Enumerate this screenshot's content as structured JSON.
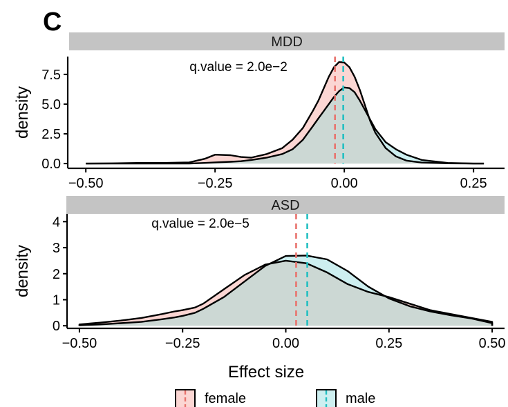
{
  "panel_label": "C",
  "legend": {
    "entries": [
      {
        "label": "female",
        "fill": "#fbd6d3",
        "line": "#e8736d"
      },
      {
        "label": "male",
        "fill": "#cdeff0",
        "line": "#22bfc1"
      }
    ]
  },
  "overlap_fill": "#ccd8d4",
  "chart_data": [
    {
      "type": "area",
      "facet": "MDD",
      "annotation": "q.value = 2.0e−2",
      "xlabel": "",
      "ylabel": "density",
      "xlim": [
        -0.535,
        0.31
      ],
      "ylim": [
        -0.4,
        9.0
      ],
      "xticks": [
        -0.5,
        -0.25,
        0.0,
        0.25
      ],
      "xticklabels": [
        "−0.50",
        "−0.25",
        "0.00",
        "0.25"
      ],
      "yticks": [
        0,
        2.5,
        5,
        7.5
      ],
      "yticklabels": [
        "0.0",
        "2.5",
        "5.0",
        "7.5"
      ],
      "grid": false,
      "series": [
        {
          "name": "female",
          "mean_line": -0.018,
          "x": [
            -0.5,
            -0.45,
            -0.4,
            -0.35,
            -0.3,
            -0.27,
            -0.25,
            -0.22,
            -0.2,
            -0.18,
            -0.15,
            -0.12,
            -0.1,
            -0.08,
            -0.06,
            -0.05,
            -0.04,
            -0.03,
            -0.02,
            -0.01,
            0.0,
            0.01,
            0.02,
            0.03,
            0.04,
            0.05,
            0.06,
            0.08,
            0.1,
            0.12,
            0.15,
            0.2,
            0.25,
            0.27
          ],
          "y": [
            0.0,
            0.02,
            0.05,
            0.05,
            0.1,
            0.4,
            0.75,
            0.7,
            0.55,
            0.5,
            0.8,
            1.3,
            2.0,
            3.0,
            4.5,
            5.3,
            6.3,
            7.3,
            8.1,
            8.55,
            8.5,
            8.1,
            7.3,
            6.2,
            4.9,
            3.6,
            2.6,
            1.3,
            0.6,
            0.25,
            0.08,
            0.02,
            0.0,
            0.0
          ]
        },
        {
          "name": "male",
          "mean_line": -0.002,
          "x": [
            -0.5,
            -0.45,
            -0.4,
            -0.35,
            -0.3,
            -0.27,
            -0.25,
            -0.22,
            -0.2,
            -0.18,
            -0.15,
            -0.12,
            -0.1,
            -0.08,
            -0.06,
            -0.05,
            -0.04,
            -0.03,
            -0.02,
            -0.01,
            0.0,
            0.01,
            0.02,
            0.03,
            0.04,
            0.05,
            0.06,
            0.08,
            0.1,
            0.12,
            0.15,
            0.2,
            0.25,
            0.27
          ],
          "y": [
            0.0,
            0.0,
            0.0,
            0.0,
            0.0,
            0.05,
            0.1,
            0.15,
            0.2,
            0.3,
            0.5,
            0.8,
            1.2,
            2.0,
            3.2,
            3.8,
            4.4,
            5.0,
            5.6,
            6.1,
            6.4,
            6.35,
            6.0,
            5.3,
            4.5,
            3.7,
            2.9,
            1.8,
            1.2,
            0.75,
            0.3,
            0.05,
            0.0,
            0.0
          ]
        }
      ]
    },
    {
      "type": "area",
      "facet": "ASD",
      "annotation": "q.value = 2.0e−5",
      "xlabel": "Effect size",
      "ylabel": "density",
      "xlim": [
        -0.53,
        0.53
      ],
      "ylim": [
        -0.1,
        4.3
      ],
      "xticks": [
        -0.5,
        -0.25,
        0.0,
        0.25,
        0.5
      ],
      "xticklabels": [
        "−0.50",
        "−0.25",
        "0.00",
        "0.25",
        "0.50"
      ],
      "yticks": [
        0,
        1,
        2,
        3,
        4
      ],
      "yticklabels": [
        "0",
        "1",
        "2",
        "3",
        "4"
      ],
      "grid": false,
      "series": [
        {
          "name": "female",
          "mean_line": 0.025,
          "x": [
            -0.5,
            -0.45,
            -0.4,
            -0.35,
            -0.3,
            -0.27,
            -0.25,
            -0.22,
            -0.2,
            -0.15,
            -0.1,
            -0.05,
            0.0,
            0.05,
            0.1,
            0.15,
            0.2,
            0.25,
            0.3,
            0.35,
            0.4,
            0.45,
            0.5
          ],
          "y": [
            0.05,
            0.12,
            0.2,
            0.3,
            0.45,
            0.55,
            0.6,
            0.7,
            0.85,
            1.4,
            1.95,
            2.35,
            2.5,
            2.4,
            2.05,
            1.6,
            1.3,
            1.1,
            0.85,
            0.6,
            0.45,
            0.3,
            0.15
          ]
        },
        {
          "name": "male",
          "mean_line": 0.052,
          "x": [
            -0.5,
            -0.45,
            -0.4,
            -0.35,
            -0.3,
            -0.27,
            -0.25,
            -0.22,
            -0.2,
            -0.15,
            -0.1,
            -0.05,
            0.0,
            0.05,
            0.1,
            0.15,
            0.2,
            0.25,
            0.3,
            0.35,
            0.4,
            0.45,
            0.5
          ],
          "y": [
            0.02,
            0.05,
            0.1,
            0.15,
            0.25,
            0.32,
            0.38,
            0.5,
            0.65,
            1.1,
            1.7,
            2.3,
            2.68,
            2.7,
            2.55,
            2.1,
            1.5,
            1.05,
            0.75,
            0.55,
            0.4,
            0.28,
            0.1
          ]
        }
      ]
    }
  ]
}
